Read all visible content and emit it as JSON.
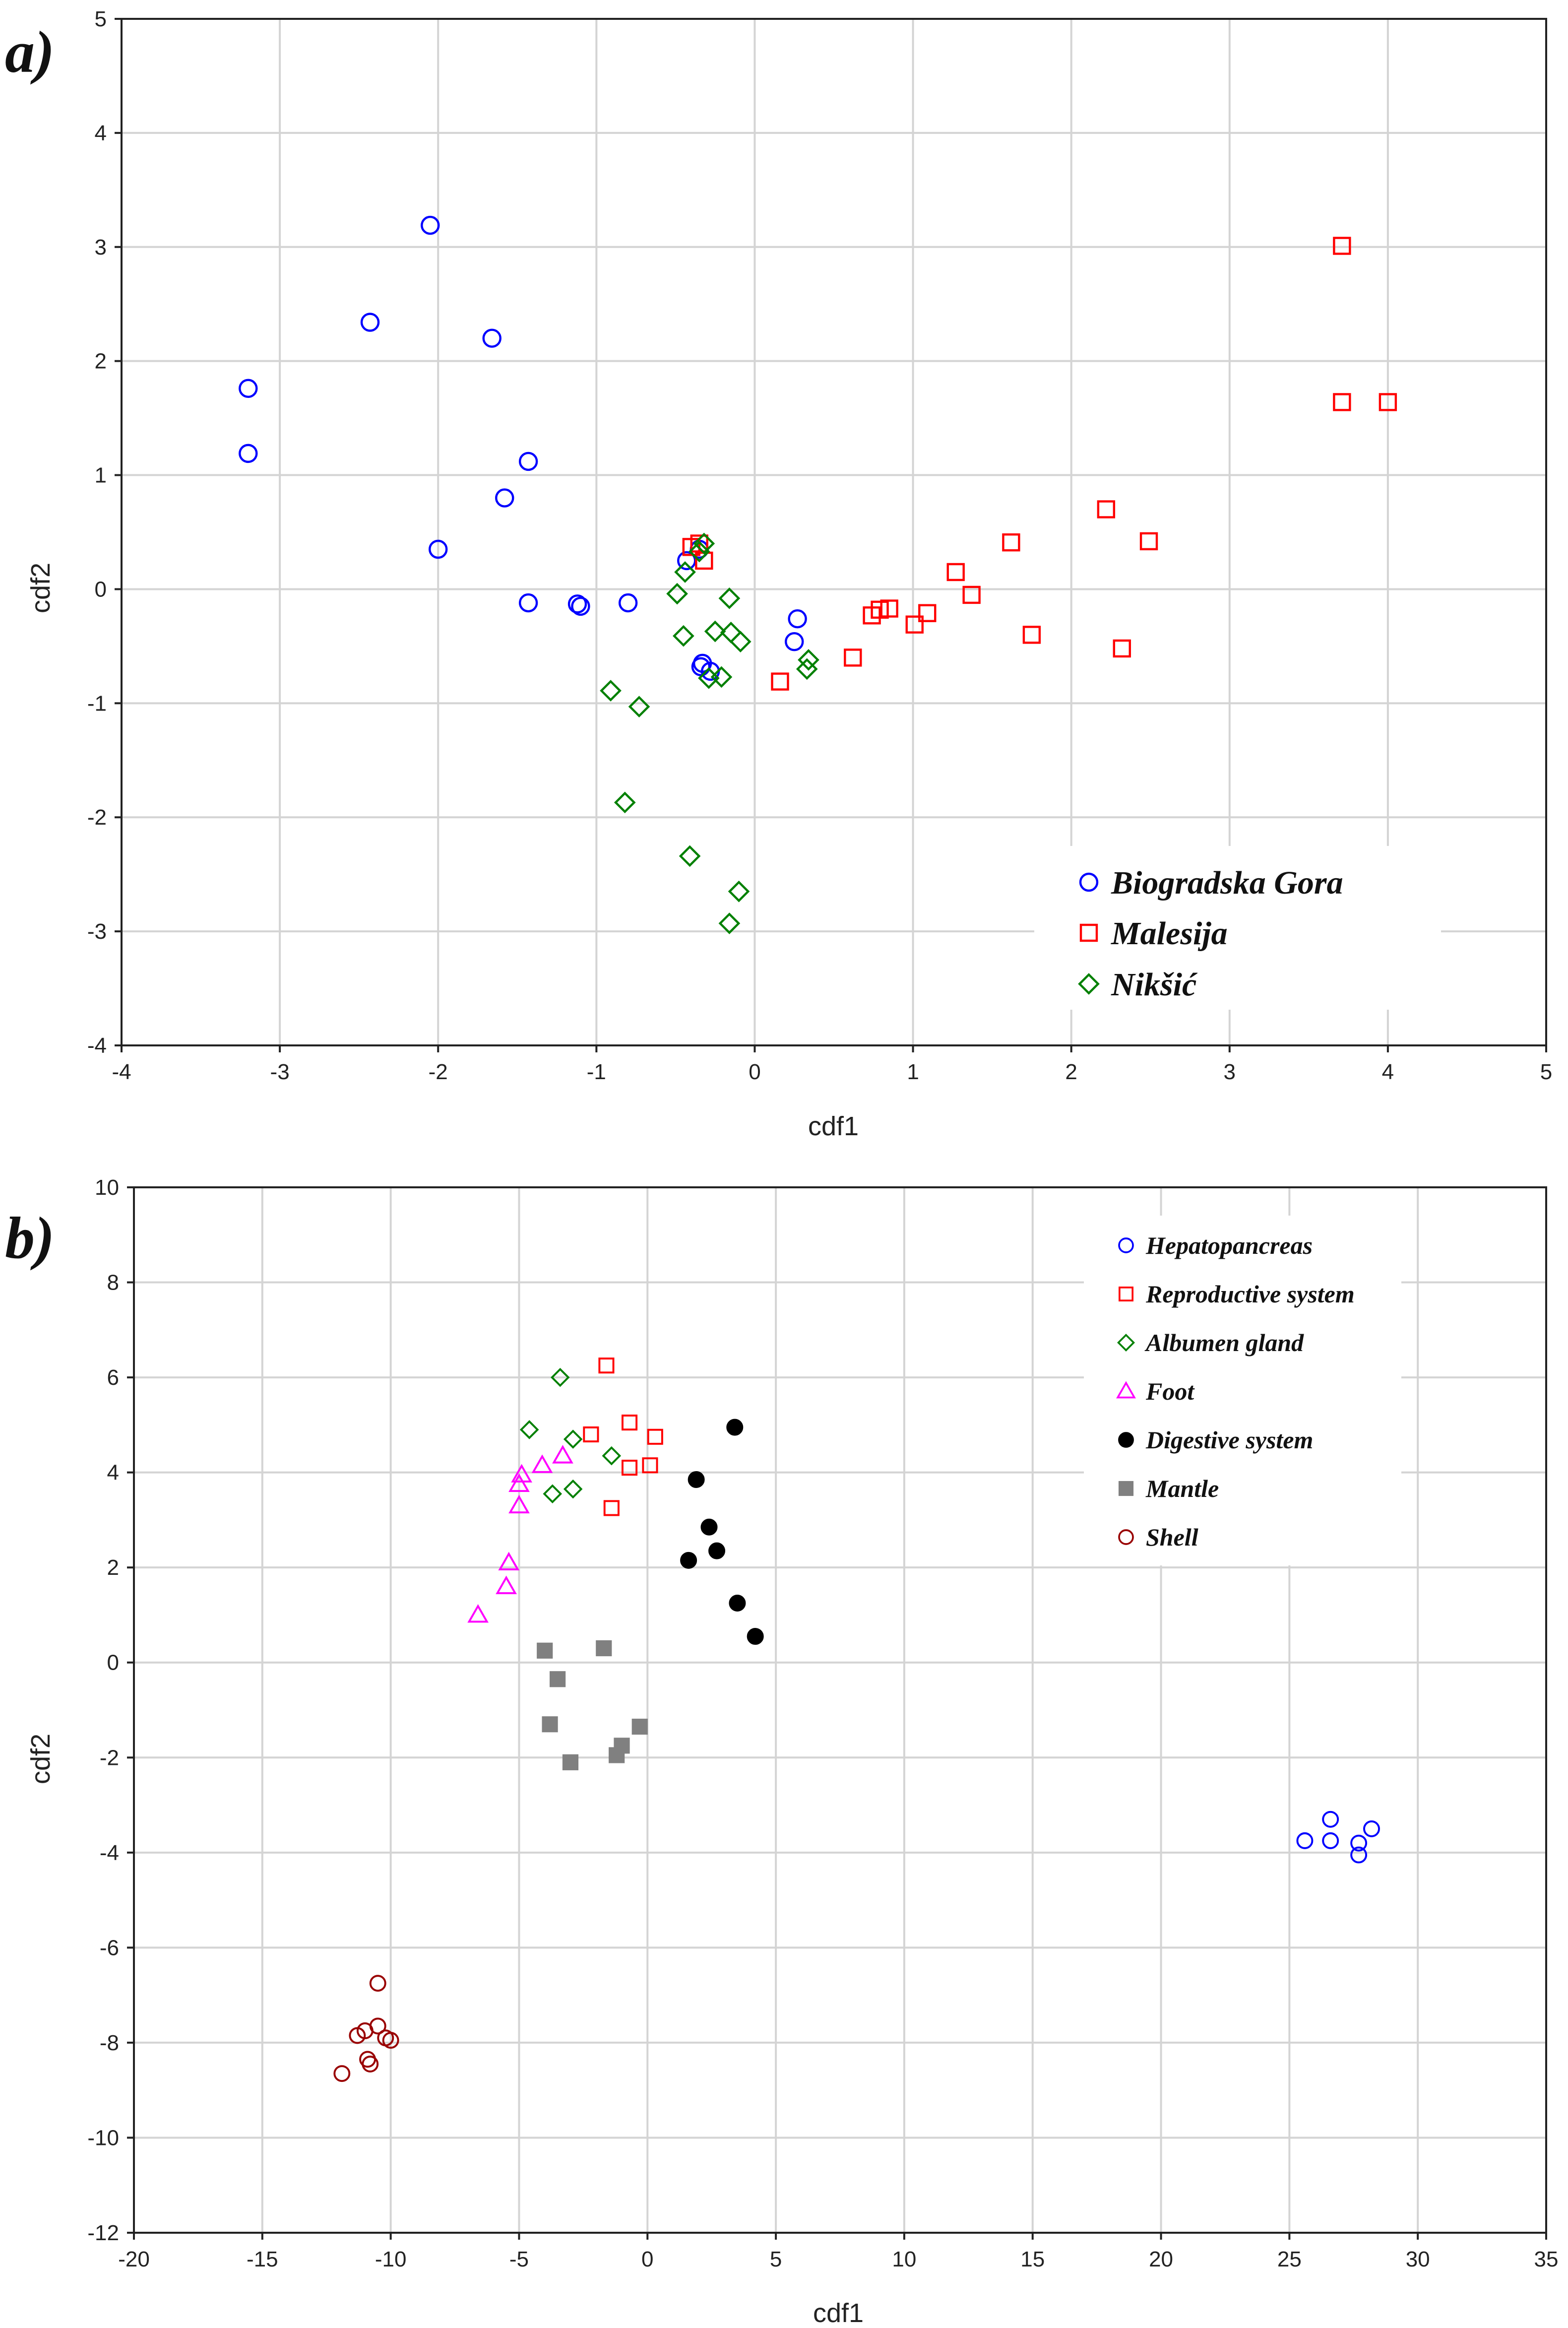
{
  "chart_data": [
    {
      "panel_label": "a)",
      "type": "scatter",
      "xlabel": "cdf1",
      "ylabel": "cdf2",
      "xlim": [
        -4,
        5
      ],
      "ylim": [
        -4,
        5
      ],
      "xticks": [
        -4,
        -3,
        -2,
        -1,
        0,
        1,
        2,
        3,
        4,
        5
      ],
      "yticks": [
        -4,
        -3,
        -2,
        -1,
        0,
        1,
        2,
        3,
        4,
        5
      ],
      "grid": true,
      "legend_position": "bottom-right",
      "series": [
        {
          "name": "Biogradska Gora",
          "marker": "circle-open",
          "color": "#0000ff",
          "points": [
            [
              -2.05,
              3.19
            ],
            [
              -2.43,
              2.34
            ],
            [
              -1.66,
              2.2
            ],
            [
              -3.2,
              1.76
            ],
            [
              -3.2,
              1.19
            ],
            [
              -1.43,
              1.12
            ],
            [
              -1.58,
              0.8
            ],
            [
              -2.0,
              0.35
            ],
            [
              -1.43,
              -0.12
            ],
            [
              -1.12,
              -0.13
            ],
            [
              -1.1,
              -0.15
            ],
            [
              -0.8,
              -0.12
            ],
            [
              -0.43,
              0.25
            ],
            [
              -0.35,
              0.35
            ],
            [
              0.27,
              -0.26
            ],
            [
              0.25,
              -0.46
            ],
            [
              -0.33,
              -0.65
            ],
            [
              -0.34,
              -0.68
            ],
            [
              -0.28,
              -0.72
            ]
          ]
        },
        {
          "name": "Malesija",
          "marker": "square-open",
          "color": "#ff0000",
          "points": [
            [
              3.71,
              3.01
            ],
            [
              3.71,
              1.64
            ],
            [
              4.0,
              1.64
            ],
            [
              2.22,
              0.7
            ],
            [
              2.49,
              0.42
            ],
            [
              1.62,
              0.41
            ],
            [
              1.27,
              0.15
            ],
            [
              1.37,
              -0.05
            ],
            [
              1.09,
              -0.21
            ],
            [
              0.85,
              -0.17
            ],
            [
              0.79,
              -0.18
            ],
            [
              0.74,
              -0.23
            ],
            [
              1.01,
              -0.31
            ],
            [
              1.75,
              -0.4
            ],
            [
              2.32,
              -0.52
            ],
            [
              0.62,
              -0.6
            ],
            [
              0.16,
              -0.81
            ],
            [
              -0.4,
              0.37
            ],
            [
              -0.35,
              0.4
            ],
            [
              -0.32,
              0.25
            ]
          ]
        },
        {
          "name": "Nikšić",
          "marker": "diamond-open",
          "color": "#008000",
          "points": [
            [
              -0.32,
              0.4
            ],
            [
              -0.35,
              0.33
            ],
            [
              -0.44,
              0.15
            ],
            [
              -0.49,
              -0.04
            ],
            [
              -0.16,
              -0.08
            ],
            [
              -0.45,
              -0.41
            ],
            [
              -0.25,
              -0.37
            ],
            [
              -0.15,
              -0.38
            ],
            [
              -0.09,
              -0.46
            ],
            [
              0.34,
              -0.62
            ],
            [
              0.33,
              -0.7
            ],
            [
              -0.29,
              -0.78
            ],
            [
              -0.21,
              -0.77
            ],
            [
              -0.91,
              -0.89
            ],
            [
              -0.73,
              -1.03
            ],
            [
              -0.82,
              -1.87
            ],
            [
              -0.41,
              -2.34
            ],
            [
              -0.1,
              -2.65
            ],
            [
              -0.16,
              -2.93
            ]
          ]
        }
      ]
    },
    {
      "panel_label": "b)",
      "type": "scatter",
      "xlabel": "cdf1",
      "ylabel": "cdf2",
      "xlim": [
        -20,
        35
      ],
      "ylim": [
        -12,
        10
      ],
      "xticks": [
        -20,
        -15,
        -10,
        -5,
        0,
        5,
        10,
        15,
        20,
        25,
        30,
        35
      ],
      "yticks": [
        -12,
        -10,
        -8,
        -6,
        -4,
        -2,
        0,
        2,
        4,
        6,
        8,
        10
      ],
      "grid": true,
      "legend_position": "top-right",
      "series": [
        {
          "name": "Hepatopancreas",
          "marker": "circle-open",
          "color": "#0000ff",
          "points": [
            [
              25.6,
              -3.75
            ],
            [
              26.6,
              -3.3
            ],
            [
              26.6,
              -3.75
            ],
            [
              27.7,
              -3.8
            ],
            [
              27.7,
              -4.05
            ],
            [
              28.2,
              -3.5
            ]
          ]
        },
        {
          "name": "Reproductive system",
          "marker": "square-open",
          "color": "#ff0000",
          "points": [
            [
              -1.6,
              6.25
            ],
            [
              -2.2,
              4.8
            ],
            [
              -0.7,
              5.05
            ],
            [
              0.3,
              4.75
            ],
            [
              -0.7,
              4.1
            ],
            [
              0.1,
              4.15
            ],
            [
              -1.4,
              3.25
            ]
          ]
        },
        {
          "name": "Albumen gland",
          "marker": "diamond-open",
          "color": "#008000",
          "points": [
            [
              -3.4,
              6.0
            ],
            [
              -4.6,
              4.9
            ],
            [
              -2.9,
              4.7
            ],
            [
              -1.4,
              4.35
            ],
            [
              -2.9,
              3.65
            ],
            [
              -3.7,
              3.55
            ]
          ]
        },
        {
          "name": "Foot",
          "marker": "triangle-open",
          "color": "#ff00ff",
          "points": [
            [
              -3.3,
              4.35
            ],
            [
              -4.1,
              4.15
            ],
            [
              -4.9,
              3.95
            ],
            [
              -5.0,
              3.75
            ],
            [
              -5.0,
              3.3
            ],
            [
              -5.4,
              2.1
            ],
            [
              -5.5,
              1.6
            ],
            [
              -6.6,
              1.0
            ]
          ]
        },
        {
          "name": "Digestive system",
          "marker": "circle-filled",
          "color": "#000000",
          "points": [
            [
              3.4,
              4.95
            ],
            [
              1.9,
              3.85
            ],
            [
              2.4,
              2.85
            ],
            [
              2.7,
              2.35
            ],
            [
              1.6,
              2.15
            ],
            [
              3.5,
              1.25
            ],
            [
              4.2,
              0.55
            ]
          ]
        },
        {
          "name": "Mantle",
          "marker": "square-filled",
          "color": "#808080",
          "points": [
            [
              -4.0,
              0.25
            ],
            [
              -1.7,
              0.3
            ],
            [
              -3.5,
              -0.35
            ],
            [
              -3.8,
              -1.3
            ],
            [
              -0.3,
              -1.35
            ],
            [
              -1.0,
              -1.75
            ],
            [
              -1.2,
              -1.95
            ],
            [
              -3.0,
              -2.1
            ]
          ]
        },
        {
          "name": "Shell",
          "marker": "circle-open",
          "color": "#990000",
          "points": [
            [
              -10.5,
              -6.75
            ],
            [
              -11.0,
              -7.75
            ],
            [
              -10.5,
              -7.65
            ],
            [
              -11.3,
              -7.85
            ],
            [
              -10.2,
              -7.9
            ],
            [
              -10.0,
              -7.95
            ],
            [
              -10.9,
              -8.35
            ],
            [
              -10.8,
              -8.45
            ],
            [
              -11.9,
              -8.65
            ]
          ]
        }
      ]
    }
  ]
}
